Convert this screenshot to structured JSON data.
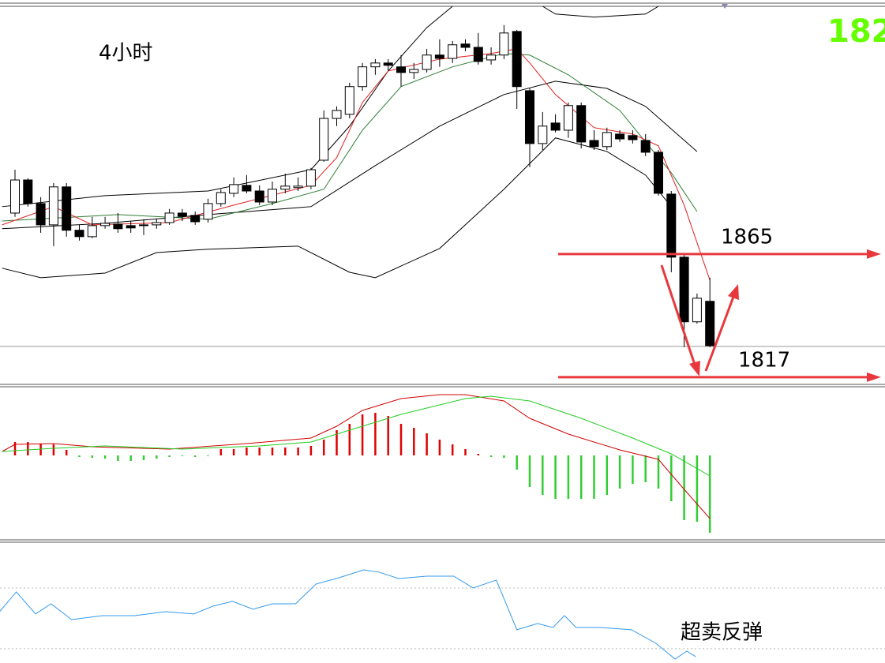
{
  "chart_data": [
    {
      "type": "candlestick",
      "title": "4小时",
      "corner_label": "182",
      "ylim": [
        1813.9,
        1961.6
      ],
      "up_color": "#ffffff",
      "down_color": "#000000",
      "open": [
        1881.0,
        1893.9,
        1884.7,
        1876.4,
        1891.2,
        1874.3,
        1871.8,
        1876.1,
        1876.7,
        1876.1,
        1876.1,
        1876.4,
        1877.3,
        1881.0,
        1880.1,
        1878.6,
        1884.7,
        1888.7,
        1891.8,
        1889.6,
        1885.3,
        1890.3,
        1890.9,
        1891.5,
        1901.6,
        1917.9,
        1919.5,
        1930.3,
        1938.0,
        1939.5,
        1938.0,
        1935.8,
        1937.0,
        1942.6,
        1941.3,
        1946.9,
        1945.6,
        1940.7,
        1942.6,
        1951.8,
        1928.7,
        1908.1,
        1916.1,
        1913.3,
        1922.9,
        1909.3,
        1906.9,
        1911.8,
        1911.2,
        1909.3,
        1904.7,
        1888.4,
        1863.8,
        1838.6,
        1846.6
      ],
      "high": [
        1897.9,
        1894.6,
        1887.2,
        1892.7,
        1892.7,
        1876.4,
        1879.5,
        1879.5,
        1881.0,
        1877.9,
        1878.6,
        1878.6,
        1882.6,
        1882.6,
        1881.6,
        1886.6,
        1890.3,
        1894.9,
        1895.8,
        1891.8,
        1893.3,
        1896.4,
        1894.9,
        1898.6,
        1921.0,
        1922.6,
        1931.8,
        1939.5,
        1941.0,
        1941.0,
        1942.6,
        1939.5,
        1945.0,
        1948.7,
        1948.1,
        1948.7,
        1951.2,
        1945.6,
        1954.3,
        1952.4,
        1929.6,
        1920.4,
        1919.5,
        1924.1,
        1924.1,
        1913.3,
        1914.3,
        1913.3,
        1913.3,
        1911.8,
        1905.6,
        1889.6,
        1865.0,
        1849.6,
        1855.8
      ],
      "low": [
        1879.5,
        1883.5,
        1873.3,
        1868.1,
        1871.8,
        1870.3,
        1871.2,
        1874.9,
        1873.3,
        1873.3,
        1872.4,
        1874.9,
        1876.4,
        1877.9,
        1876.4,
        1877.3,
        1883.5,
        1887.2,
        1888.7,
        1884.1,
        1884.1,
        1888.7,
        1889.6,
        1890.3,
        1901.0,
        1914.9,
        1917.9,
        1928.7,
        1934.9,
        1936.4,
        1930.3,
        1933.3,
        1935.8,
        1938.0,
        1939.5,
        1944.1,
        1938.9,
        1938.9,
        1941.0,
        1921.6,
        1898.9,
        1905.6,
        1912.4,
        1910.3,
        1906.2,
        1905.6,
        1905.6,
        1908.7,
        1908.1,
        1903.2,
        1887.8,
        1857.9,
        1828.7,
        1837.9,
        1828.7
      ],
      "close": [
        1893.9,
        1884.7,
        1876.4,
        1891.2,
        1874.3,
        1871.8,
        1876.1,
        1877.0,
        1874.9,
        1875.2,
        1876.4,
        1877.3,
        1881.0,
        1879.8,
        1877.6,
        1884.7,
        1889.0,
        1892.1,
        1889.6,
        1885.3,
        1890.3,
        1891.5,
        1891.5,
        1897.9,
        1917.9,
        1921.0,
        1930.3,
        1938.0,
        1939.5,
        1938.6,
        1935.8,
        1937.0,
        1942.6,
        1941.3,
        1946.6,
        1945.6,
        1940.1,
        1942.6,
        1951.2,
        1930.3,
        1908.1,
        1914.9,
        1913.3,
        1922.9,
        1908.7,
        1906.9,
        1912.4,
        1909.9,
        1909.6,
        1904.7,
        1888.7,
        1863.8,
        1838.6,
        1847.8,
        1829.3
      ],
      "series": [
        {
          "color": "#000000",
          "x": [
            -1,
            7,
            15,
            23,
            26,
            29,
            32,
            34,
            37,
            41,
            42,
            45,
            49,
            50
          ],
          "values": [
            1883.5,
            1887.8,
            1889.6,
            1897.9,
            1914.9,
            1936.4,
            1953.3,
            1961.6,
            null,
            1961.6,
            1958.6,
            1957.4,
            1958.6,
            1961.6
          ]
        },
        {
          "color": "#000000",
          "x": [
            -1,
            7,
            15,
            23,
            28,
            33,
            38,
            42,
            46,
            49,
            53
          ],
          "values": [
            1874.9,
            1877.0,
            1880.4,
            1883.5,
            1899.5,
            1914.9,
            1927.2,
            1932.4,
            1929.6,
            1922.6,
            1905.0
          ]
        },
        {
          "color": "#000000",
          "x": [
            -1,
            2,
            7,
            11,
            15,
            22,
            26,
            28,
            33,
            38,
            42,
            46,
            49,
            51
          ],
          "values": [
            1859.5,
            1855.8,
            1857.6,
            1865.6,
            1866.9,
            1868.1,
            1857.9,
            1855.8,
            1867.2,
            1890.3,
            1910.3,
            1905.0,
            1895.8,
            1883.5
          ]
        },
        {
          "color": "#2e7d32",
          "x": [
            -1,
            8,
            15,
            20,
            24,
            27,
            30,
            34,
            38,
            40,
            43,
            47,
            49,
            51,
            53
          ],
          "values": [
            1877.9,
            1880.4,
            1878.6,
            1884.7,
            1890.3,
            1913.3,
            1930.3,
            1938.0,
            1943.2,
            1942.6,
            1934.9,
            1921.0,
            1908.7,
            1896.7,
            1881.6
          ]
        },
        {
          "color": "#e02020",
          "x": [
            -1,
            3,
            6,
            12,
            17,
            23,
            25,
            27,
            29,
            33,
            37,
            39,
            40,
            42,
            45,
            48,
            50,
            52,
            54
          ],
          "values": [
            1876.4,
            1883.5,
            1876.4,
            1877.3,
            1884.1,
            1891.8,
            1902.6,
            1924.1,
            1936.4,
            1941.0,
            1943.2,
            1945.0,
            1939.5,
            1927.2,
            1914.3,
            1911.8,
            1907.2,
            1884.1,
            1854.8
          ]
        }
      ],
      "price_line": 1829,
      "levels": [
        1865,
        1817
      ],
      "level_color": "#e8383d"
    },
    {
      "type": "macd",
      "ylim": [
        -108,
        87
      ],
      "up_color": "#e00000",
      "down_color": "#33cc33",
      "histogram": [
        17,
        17,
        15,
        14,
        7,
        -2,
        -3,
        -4,
        -7,
        -7,
        -6,
        -4,
        -2,
        -1,
        -2,
        -1,
        8,
        8,
        10,
        10,
        10,
        10,
        10,
        12,
        20,
        32,
        40,
        52,
        54,
        50,
        40,
        35,
        28,
        20,
        14,
        8,
        2,
        -2,
        -3,
        -18,
        -40,
        -50,
        -55,
        -55,
        -55,
        -55,
        -50,
        -42,
        -36,
        -34,
        -42,
        -58,
        -82,
        -84,
        -98
      ],
      "series": [
        {
          "color": "#d00000",
          "x": [
            -1,
            0,
            3,
            6,
            12,
            18,
            23,
            25,
            27,
            30,
            33,
            35,
            38,
            40,
            43,
            47,
            50,
            52,
            54
          ],
          "values": [
            5,
            14,
            15,
            11,
            8,
            15,
            22,
            37,
            57,
            72,
            77,
            77,
            69,
            47,
            27,
            7,
            -5,
            -43,
            -80
          ]
        },
        {
          "color": "#22cc22",
          "x": [
            -1,
            3,
            7,
            13,
            19,
            23,
            26,
            30,
            35,
            37,
            40,
            44,
            48,
            51,
            54
          ],
          "values": [
            5,
            9,
            12,
            8,
            12,
            17,
            32,
            52,
            72,
            75,
            69,
            47,
            22,
            2,
            -26
          ]
        }
      ]
    },
    {
      "type": "line",
      "ylim": [
        20.6,
        99.6
      ],
      "annotation": "超卖反弹",
      "levels": [
        70,
        30
      ],
      "series": [
        {
          "color": "#3399ee",
          "x": [
            -1.2,
            0.1,
            1.6,
            2.8,
            4.4,
            6.8,
            9.3,
            11.7,
            13.9,
            15.4,
            16.9,
            18.5,
            20.0,
            21.8,
            23.4,
            25.2,
            27.1,
            28.3,
            29.8,
            32.0,
            34.1,
            35.6,
            37.4,
            39.0,
            40.6,
            41.8,
            42.7,
            43.6,
            45.5,
            47.9,
            49.8,
            51.3,
            52.2,
            52.9
          ],
          "values": [
            54.4,
            67.4,
            52.9,
            59.6,
            49.2,
            51.8,
            51.8,
            54.4,
            52.9,
            58.1,
            61.2,
            56.0,
            59.6,
            59.6,
            72.6,
            76.8,
            81.9,
            80.4,
            76.2,
            77.8,
            77.8,
            70.0,
            75.2,
            42.5,
            46.6,
            44.0,
            51.8,
            44.0,
            44.0,
            42.5,
            33.6,
            23.2,
            28.4,
            24.8
          ]
        }
      ]
    }
  ]
}
